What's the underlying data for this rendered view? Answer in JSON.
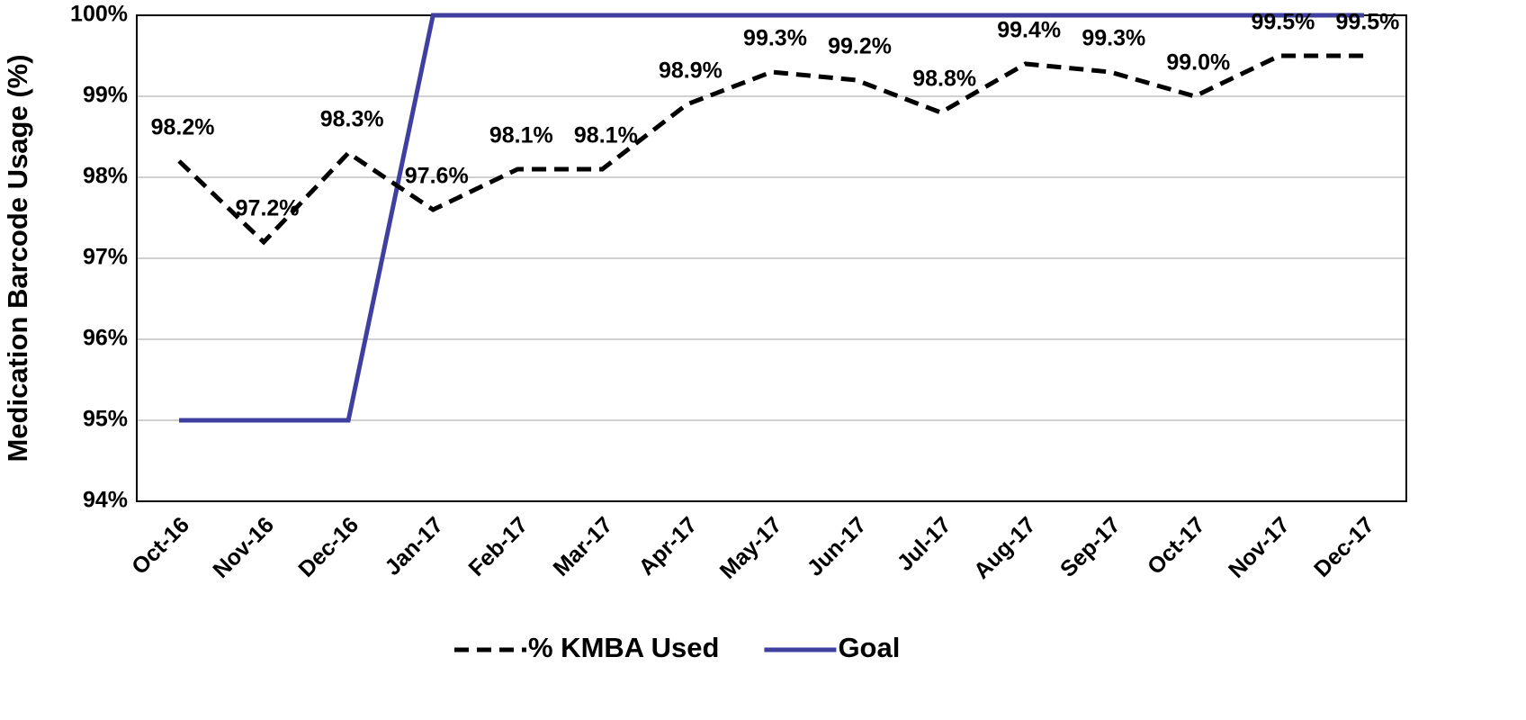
{
  "chart_data": {
    "type": "line",
    "y_label": "Medication Barcode Usage (%)",
    "categories": [
      "Oct-16",
      "Nov-16",
      "Dec-16",
      "Jan-17",
      "Feb-17",
      "Mar-17",
      "Apr-17",
      "May-17",
      "Jun-17",
      "Jul-17",
      "Aug-17",
      "Sep-17",
      "Oct-17",
      "Nov-17",
      "Dec-17"
    ],
    "series": [
      {
        "name": "% KMBA Used",
        "color": "#000000",
        "dashed": true,
        "values": [
          98.2,
          97.2,
          98.3,
          97.6,
          98.1,
          98.1,
          98.9,
          99.3,
          99.2,
          98.8,
          99.4,
          99.3,
          99.0,
          99.5,
          99.5
        ],
        "value_labels": [
          "98.2%",
          "97.2%",
          "98.3%",
          "97.6%",
          "98.1%",
          "98.1%",
          "98.9%",
          "99.3%",
          "99.2%",
          "98.8%",
          "99.4%",
          "99.3%",
          "99.0%",
          "99.5%",
          "99.5%"
        ]
      },
      {
        "name": "Goal",
        "color": "#3f3f9f",
        "dashed": false,
        "values": [
          95,
          95,
          95,
          100,
          100,
          100,
          100,
          100,
          100,
          100,
          100,
          100,
          100,
          100,
          100
        ]
      }
    ],
    "ylim": [
      94,
      100
    ],
    "yticks": [
      {
        "value": 94,
        "label": "94%"
      },
      {
        "value": 95,
        "label": "95%"
      },
      {
        "value": 96,
        "label": "96%"
      },
      {
        "value": 97,
        "label": "97%"
      },
      {
        "value": 98,
        "label": "98%"
      },
      {
        "value": 99,
        "label": "99%"
      },
      {
        "value": 100,
        "label": "100%"
      }
    ],
    "grid": true,
    "legend": "bottom"
  }
}
